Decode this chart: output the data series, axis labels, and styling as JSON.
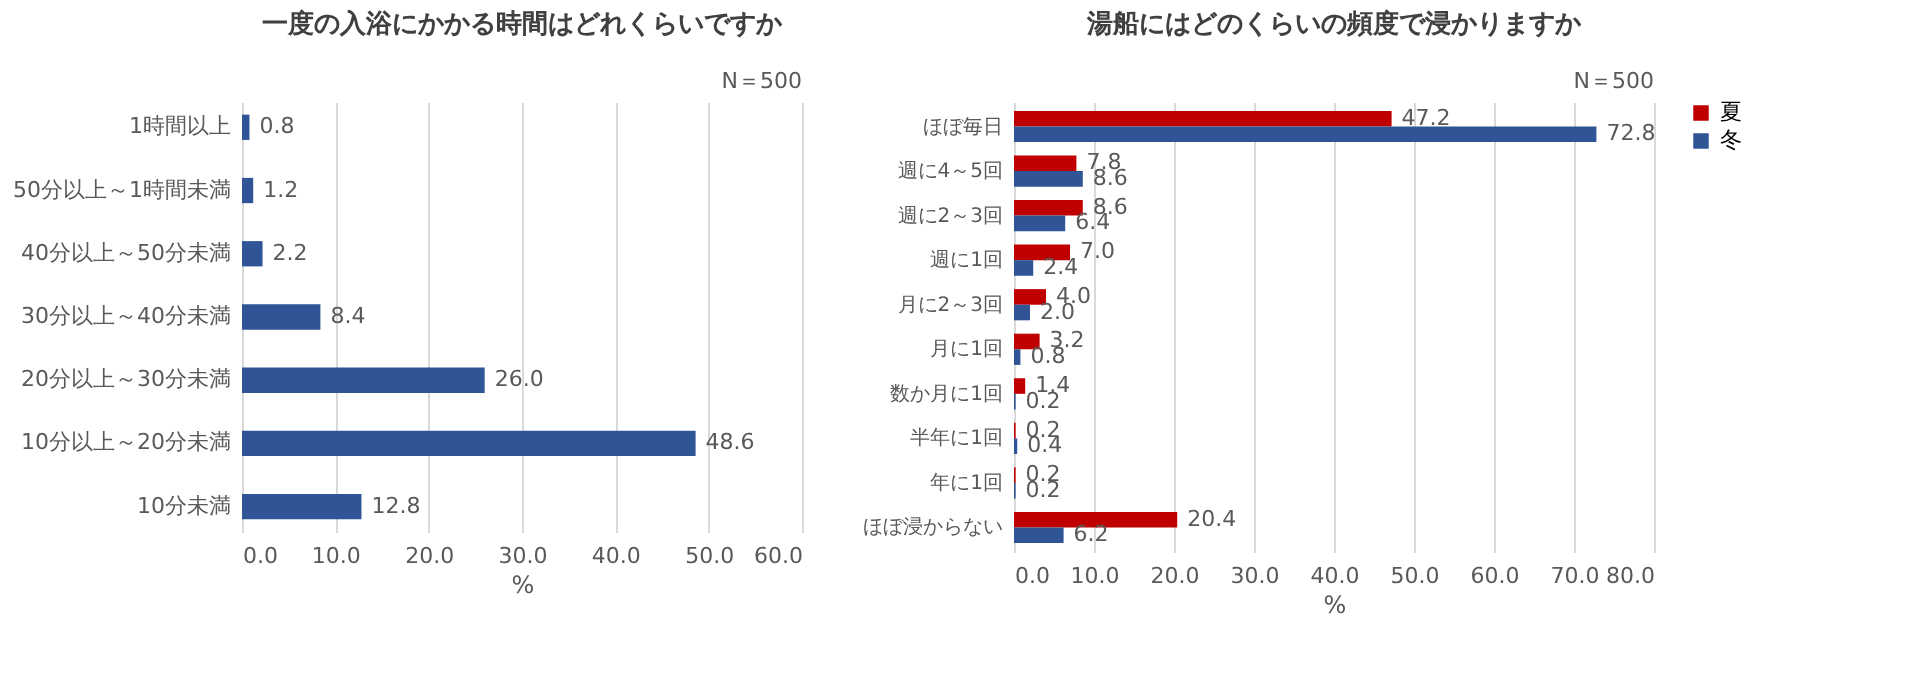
{
  "chart_data": [
    {
      "type": "bar",
      "orientation": "horizontal",
      "title": "一度の入浴にかかる時間はどれくらいですか",
      "xlabel": "%",
      "annotations": [
        "N＝500"
      ],
      "categories": [
        "1時間以上",
        "50分以上～1時間未満",
        "40分以上～50分未満",
        "30分以上～40分未満",
        "20分以上～30分未満",
        "10分以上～20分未満",
        "10分未満"
      ],
      "series": [
        {
          "color": "#2f5597",
          "values": [
            0.8,
            1.2,
            2.2,
            8.4,
            26.0,
            48.6,
            12.8
          ],
          "value_labels": [
            "0.8",
            "1.2",
            "2.2",
            "8.4",
            "26.0",
            "48.6",
            "12.8"
          ]
        }
      ],
      "xlim": [
        0,
        60
      ],
      "xticks": [
        {
          "value": 0,
          "label": "0.0"
        },
        {
          "value": 10,
          "label": "10.0"
        },
        {
          "value": 20,
          "label": "20.0"
        },
        {
          "value": 30,
          "label": "30.0"
        },
        {
          "value": 40,
          "label": "40.0"
        },
        {
          "value": 50,
          "label": "50.0"
        },
        {
          "value": 60,
          "label": "60.0"
        }
      ],
      "grid": "x",
      "legend": false
    },
    {
      "type": "bar",
      "orientation": "horizontal",
      "title": "湯船にはどのくらいの頻度で浸かりますか",
      "xlabel": "%",
      "annotations": [
        "N＝500"
      ],
      "categories": [
        "ほぼ毎日",
        "週に4～5回",
        "週に2～3回",
        "週に1回",
        "月に2～3回",
        "月に1回",
        "数か月に1回",
        "半年に1回",
        "年に1回",
        "ほぼ浸からない"
      ],
      "series": [
        {
          "name": "夏",
          "color": "#c00000",
          "values": [
            47.2,
            7.8,
            8.6,
            7.0,
            4.0,
            3.2,
            1.4,
            0.2,
            0.2,
            20.4
          ],
          "value_labels": [
            "47.2",
            "7.8",
            "8.6",
            "7.0",
            "4.0",
            "3.2",
            "1.4",
            "0.2",
            "0.2",
            "20.4"
          ]
        },
        {
          "name": "冬",
          "color": "#2f5597",
          "values": [
            72.8,
            8.6,
            6.4,
            2.4,
            2.0,
            0.8,
            0.2,
            0.4,
            0.2,
            6.2
          ],
          "value_labels": [
            "72.8",
            "8.6",
            "6.4",
            "2.4",
            "2.0",
            "0.8",
            "0.2",
            "0.4",
            "0.2",
            "6.2"
          ]
        }
      ],
      "xlim": [
        0,
        80
      ],
      "xticks": [
        {
          "value": 0,
          "label": "0.0"
        },
        {
          "value": 10,
          "label": "10.0"
        },
        {
          "value": 20,
          "label": "20.0"
        },
        {
          "value": 30,
          "label": "30.0"
        },
        {
          "value": 40,
          "label": "40.0"
        },
        {
          "value": 50,
          "label": "50.0"
        },
        {
          "value": 60,
          "label": "60.0"
        },
        {
          "value": 70,
          "label": "70.0"
        },
        {
          "value": 80,
          "label": "80.0"
        }
      ],
      "grid": "x",
      "legend": "right"
    }
  ]
}
